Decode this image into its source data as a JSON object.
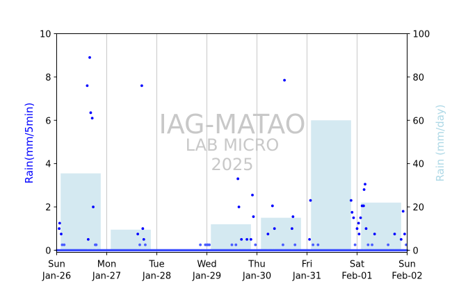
{
  "chart_data": {
    "type": "scatter",
    "left_axis": {
      "label": "Rain(mm/5min)",
      "ylim": [
        -0.1,
        10
      ],
      "ticks": [
        0,
        2,
        4,
        6,
        8,
        10
      ],
      "color": "#0000ff"
    },
    "right_axis": {
      "label": "Rain (mm/day)",
      "ylim": [
        -1,
        100
      ],
      "ticks": [
        0,
        20,
        40,
        60,
        80,
        100
      ],
      "color": "#add8e6"
    },
    "x_axis": {
      "range_days": [
        0,
        7
      ],
      "ticks": [
        {
          "day": 0,
          "line1": "Sun",
          "line2": "Jan-26"
        },
        {
          "day": 1,
          "line1": "Mon",
          "line2": "Jan-27"
        },
        {
          "day": 2,
          "line1": "Tue",
          "line2": "Jan-28"
        },
        {
          "day": 3,
          "line1": "Wed",
          "line2": "Jan-29"
        },
        {
          "day": 4,
          "line1": "Thu",
          "line2": "Jan-30"
        },
        {
          "day": 5,
          "line1": "Fri",
          "line2": "Jan-31"
        },
        {
          "day": 6,
          "line1": "Sat",
          "line2": "Feb-01"
        },
        {
          "day": 7,
          "line1": "Sun",
          "line2": "Feb-02"
        }
      ],
      "vertical_grid": true
    },
    "watermark": [
      "IAG-MATAO",
      "LAB MICRO",
      "2025"
    ],
    "daily_totals_mm": [
      {
        "start": 0.08,
        "end": 0.88,
        "value": 35.5
      },
      {
        "start": 1.08,
        "end": 1.88,
        "value": 9.5
      },
      {
        "start": 3.08,
        "end": 3.88,
        "value": 12
      },
      {
        "start": 4.08,
        "end": 4.88,
        "value": 15
      },
      {
        "start": 5.08,
        "end": 5.88,
        "value": 60
      },
      {
        "start": 6.08,
        "end": 6.88,
        "value": 22
      }
    ],
    "rain_5min_points": [
      [
        0.05,
        1.0
      ],
      [
        0.06,
        1.25
      ],
      [
        0.09,
        0.75
      ],
      [
        0.11,
        0.25
      ],
      [
        0.15,
        0.25
      ],
      [
        0.61,
        7.6
      ],
      [
        0.63,
        0.5
      ],
      [
        0.66,
        8.9
      ],
      [
        0.68,
        6.35
      ],
      [
        0.71,
        6.1
      ],
      [
        0.73,
        2.0
      ],
      [
        0.77,
        0.25
      ],
      [
        0.79,
        0.25
      ],
      [
        1.62,
        0.75
      ],
      [
        1.66,
        0.25
      ],
      [
        1.7,
        7.6
      ],
      [
        1.72,
        1.0
      ],
      [
        1.74,
        0.5
      ],
      [
        1.77,
        0.25
      ],
      [
        2.87,
        0.25
      ],
      [
        2.97,
        0.25
      ],
      [
        3.0,
        0.25
      ],
      [
        3.02,
        0.25
      ],
      [
        3.05,
        0.25
      ],
      [
        3.5,
        0.25
      ],
      [
        3.58,
        0.25
      ],
      [
        3.62,
        3.3
      ],
      [
        3.64,
        2.0
      ],
      [
        3.69,
        0.5
      ],
      [
        3.8,
        0.5
      ],
      [
        3.88,
        0.5
      ],
      [
        3.91,
        2.55
      ],
      [
        3.93,
        1.55
      ],
      [
        3.97,
        0.25
      ],
      [
        4.22,
        0.75
      ],
      [
        4.31,
        2.05
      ],
      [
        4.35,
        1.0
      ],
      [
        4.55,
        7.85
      ],
      [
        4.52,
        0.25
      ],
      [
        4.7,
        1.0
      ],
      [
        4.72,
        1.55
      ],
      [
        4.76,
        0.25
      ],
      [
        5.05,
        0.5
      ],
      [
        5.07,
        2.3
      ],
      [
        5.12,
        0.25
      ],
      [
        5.22,
        0.25
      ],
      [
        5.88,
        2.3
      ],
      [
        5.9,
        1.75
      ],
      [
        5.93,
        1.5
      ],
      [
        5.96,
        0.25
      ],
      [
        6.0,
        1.0
      ],
      [
        6.03,
        1.25
      ],
      [
        6.04,
        0.75
      ],
      [
        6.07,
        1.5
      ],
      [
        6.1,
        2.05
      ],
      [
        6.13,
        2.05
      ],
      [
        6.14,
        2.8
      ],
      [
        6.16,
        3.05
      ],
      [
        6.18,
        1.0
      ],
      [
        6.22,
        0.25
      ],
      [
        6.3,
        0.25
      ],
      [
        6.35,
        0.75
      ],
      [
        6.62,
        0.25
      ],
      [
        6.75,
        0.75
      ],
      [
        6.88,
        0.5
      ],
      [
        6.92,
        1.8
      ],
      [
        6.95,
        0.75
      ],
      [
        6.98,
        0.25
      ]
    ]
  }
}
